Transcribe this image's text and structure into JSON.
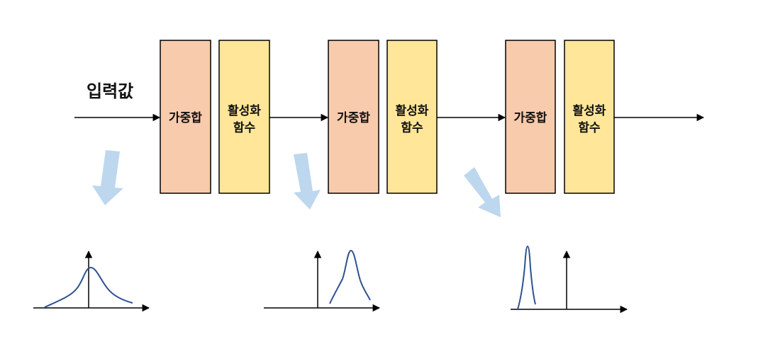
{
  "input_label": "입력값",
  "stages": [
    {
      "sum_label": "가중합",
      "activation_label_line1": "활성화",
      "activation_label_line2": "함수"
    },
    {
      "sum_label": "가중합",
      "activation_label_line1": "활성화",
      "activation_label_line2": "함수"
    },
    {
      "sum_label": "가중합",
      "activation_label_line1": "활성화",
      "activation_label_line2": "함수"
    }
  ],
  "colors": {
    "sum_box_fill": "#f8cbad",
    "activation_box_fill": "#ffe699",
    "box_stroke": "#000000",
    "flow_line": "#000000",
    "callout_arrow": "#bdd7ee",
    "curve": "#2f528f",
    "axis": "#000000"
  },
  "distributions": [
    {
      "shape": "wide-centered-peak"
    },
    {
      "shape": "narrow-peak-shifted-right"
    },
    {
      "shape": "very-narrow-peak-shifted-left"
    }
  ]
}
